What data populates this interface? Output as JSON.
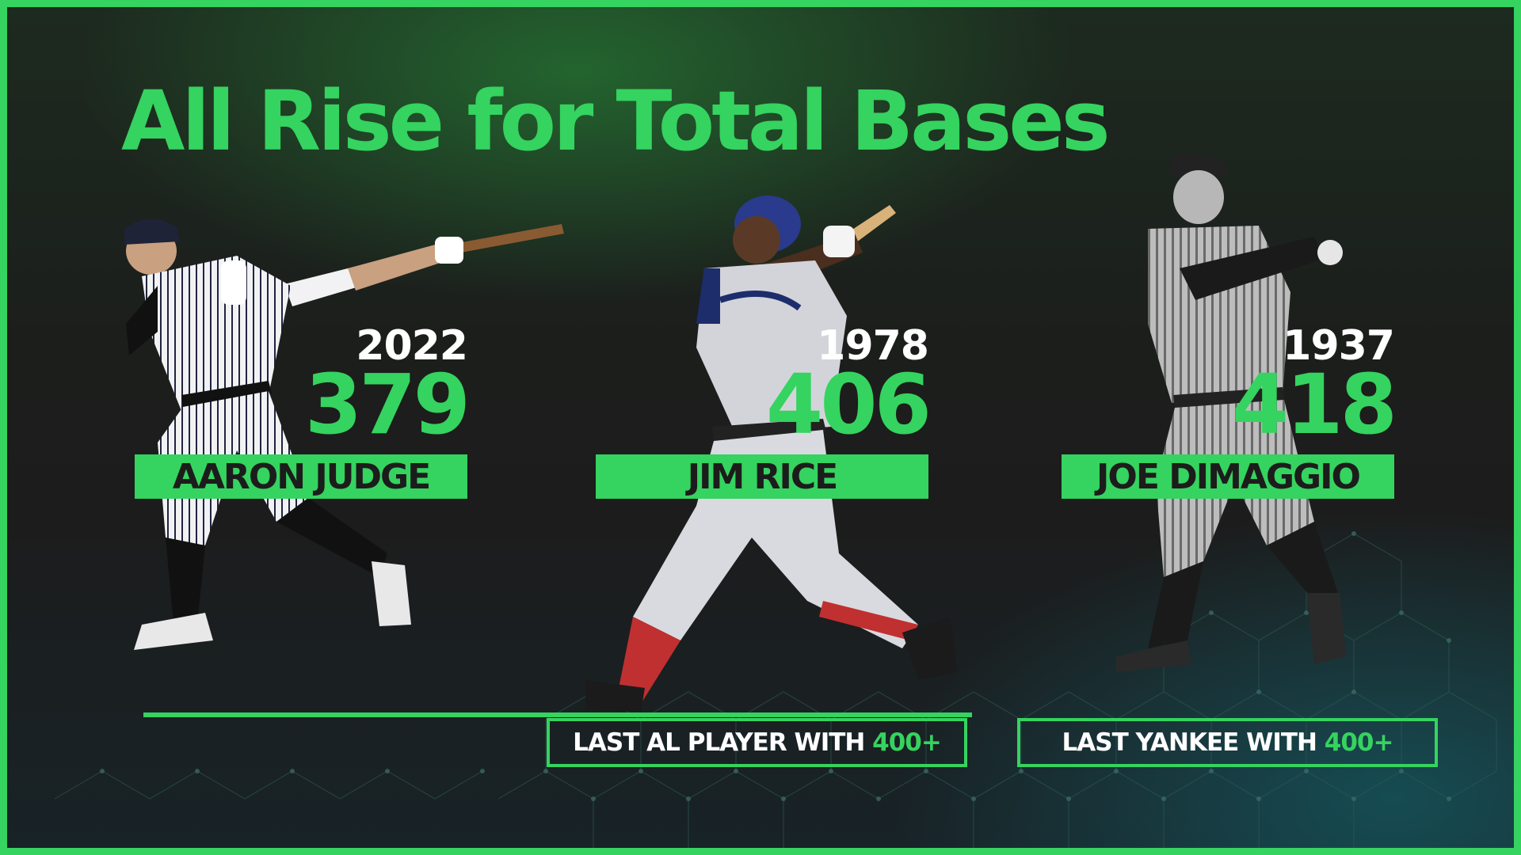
{
  "title": "All Rise for Total Bases",
  "colors": {
    "accent": "#35d35f",
    "background": "#1c1c1c",
    "text": "#ffffff"
  },
  "players": [
    {
      "name": "AARON JUDGE",
      "year": "2022",
      "total_bases": "379"
    },
    {
      "name": "JIM RICE",
      "year": "1978",
      "total_bases": "406"
    },
    {
      "name": "JOE DIMAGGIO",
      "year": "1937",
      "total_bases": "418"
    }
  ],
  "notes": [
    {
      "text": "LAST AL PLAYER WITH ",
      "highlight": "400+"
    },
    {
      "text": "LAST YANKEE WITH ",
      "highlight": "400+"
    }
  ]
}
